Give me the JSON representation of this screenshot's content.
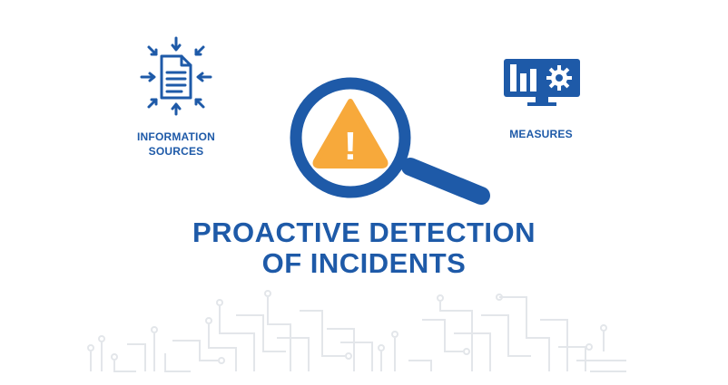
{
  "info_sources": {
    "line1": "INFORMATION",
    "line2": "SOURCES",
    "icon": "document-inbound-arrows-icon"
  },
  "measures": {
    "label": "MEASURES",
    "icon": "monitor-chart-gear-icon"
  },
  "center": {
    "icon": "magnifier-warning-icon",
    "warning_symbol": "!"
  },
  "headline": {
    "line1": "PROACTIVE DETECTION",
    "line2": "OF INCIDENTS"
  },
  "colors": {
    "brand_blue": "#1e5aa8",
    "warning_orange": "#f7a93b",
    "circuit_gray": "#e3e6ea"
  }
}
